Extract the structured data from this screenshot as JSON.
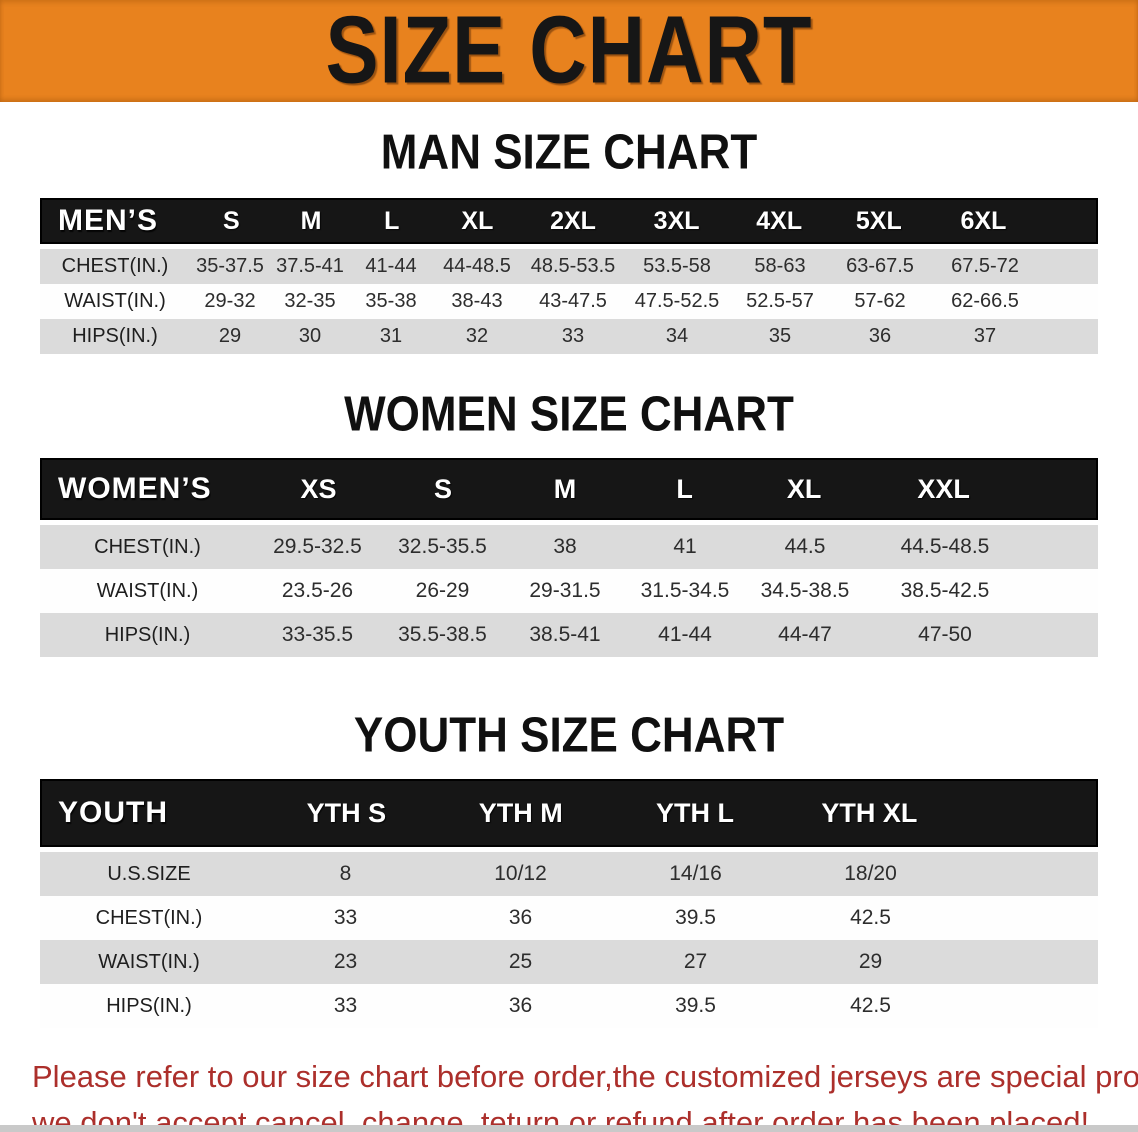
{
  "banner": {
    "title": "SIZE CHART"
  },
  "colors": {
    "banner_orange": "#E8821E",
    "table_header_black": "#161616",
    "row_gray": "#DBDBDB",
    "row_white": "#FEFEFE",
    "notice_red": "#AC2F2B"
  },
  "men": {
    "heading": "MAN SIZE CHART",
    "label": "MEN’S",
    "sizes": [
      "S",
      "M",
      "L",
      "XL",
      "2XL",
      "3XL",
      "4XL",
      "5XL",
      "6XL"
    ],
    "rows": [
      {
        "label": "CHEST(IN.)",
        "values": [
          "35-37.5",
          "37.5-41",
          "41-44",
          "44-48.5",
          "48.5-53.5",
          "53.5-58",
          "58-63",
          "63-67.5",
          "67.5-72"
        ]
      },
      {
        "label": "WAIST(IN.)",
        "values": [
          "29-32",
          "32-35",
          "35-38",
          "38-43",
          "43-47.5",
          "47.5-52.5",
          "52.5-57",
          "57-62",
          "62-66.5"
        ]
      },
      {
        "label": "HIPS(IN.)",
        "values": [
          "29",
          "30",
          "31",
          "32",
          "33",
          "34",
          "35",
          "36",
          "37"
        ]
      }
    ]
  },
  "women": {
    "heading": "WOMEN SIZE CHART",
    "label": "WOMEN’S",
    "sizes": [
      "XS",
      "S",
      "M",
      "L",
      "XL",
      "XXL"
    ],
    "rows": [
      {
        "label": "CHEST(IN.)",
        "values": [
          "29.5-32.5",
          "32.5-35.5",
          "38",
          "41",
          "44.5",
          "44.5-48.5"
        ]
      },
      {
        "label": "WAIST(IN.)",
        "values": [
          "23.5-26",
          "26-29",
          "29-31.5",
          "31.5-34.5",
          "34.5-38.5",
          "38.5-42.5"
        ]
      },
      {
        "label": "HIPS(IN.)",
        "values": [
          "33-35.5",
          "35.5-38.5",
          "38.5-41",
          "41-44",
          "44-47",
          "47-50"
        ]
      }
    ]
  },
  "youth": {
    "heading": "YOUTH SIZE CHART",
    "label": "YOUTH",
    "sizes": [
      "YTH S",
      "YTH M",
      "YTH L",
      "YTH XL"
    ],
    "rows": [
      {
        "label": "U.S.SIZE",
        "values": [
          "8",
          "10/12",
          "14/16",
          "18/20"
        ]
      },
      {
        "label": "CHEST(IN.)",
        "values": [
          "33",
          "36",
          "39.5",
          "42.5"
        ]
      },
      {
        "label": "WAIST(IN.)",
        "values": [
          "23",
          "25",
          "27",
          "29"
        ]
      },
      {
        "label": "HIPS(IN.)",
        "values": [
          "33",
          "36",
          "39.5",
          "42.5"
        ]
      }
    ]
  },
  "notice": {
    "line1": "Please refer to our size chart before order,the customized jerseys are special products,",
    "line2": "we don't accept cancel, change, teturn or refund after order has been placed!"
  }
}
